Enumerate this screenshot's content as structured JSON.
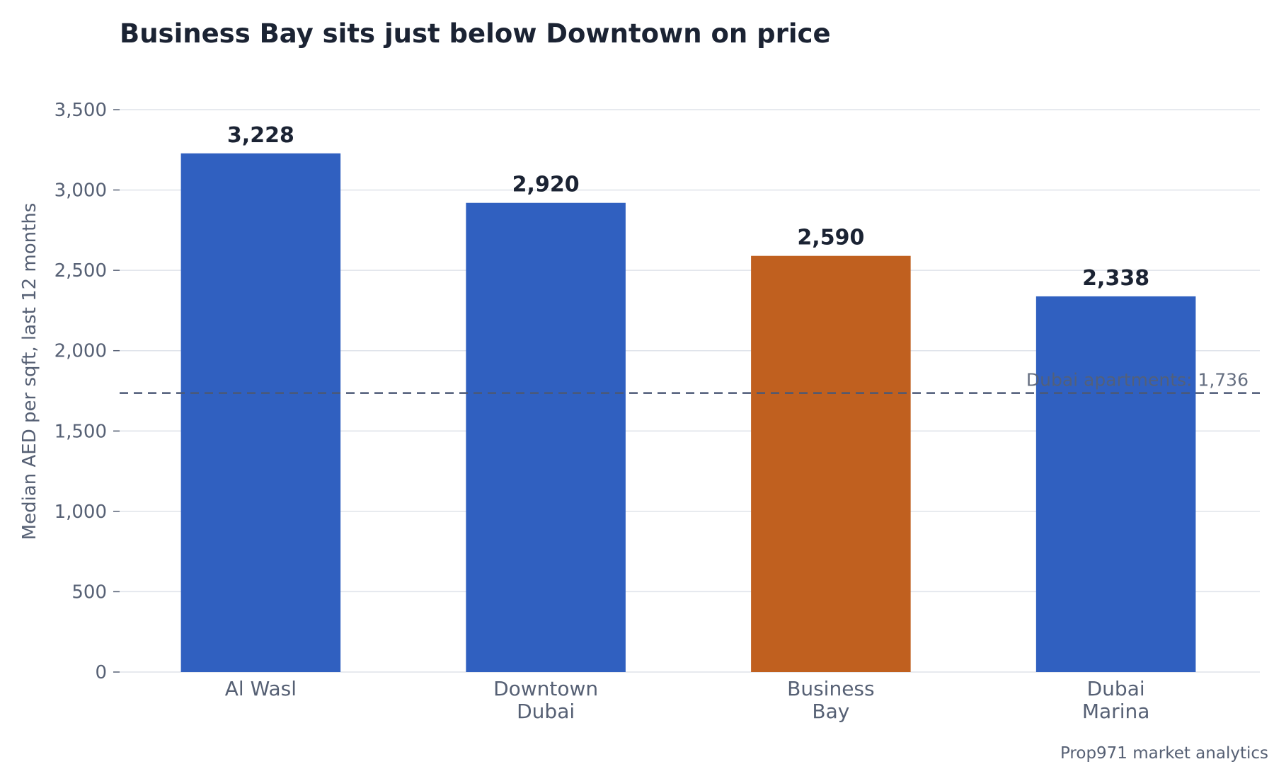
{
  "chart_data": {
    "type": "bar",
    "title": "Business Bay sits just below Downtown on price",
    "ylabel": "Median AED per sqft, last 12 months",
    "xlabel": "",
    "ylim": [
      0,
      3500
    ],
    "yticks": [
      0,
      500,
      1000,
      1500,
      2000,
      2500,
      3000,
      3500
    ],
    "ytick_labels": [
      "0",
      "500",
      "1,000",
      "1,500",
      "2,000",
      "2,500",
      "3,000",
      "3,500"
    ],
    "grid": true,
    "categories": [
      [
        "Al Wasl"
      ],
      [
        "Downtown",
        "Dubai"
      ],
      [
        "Business",
        "Bay"
      ],
      [
        "Dubai",
        "Marina"
      ]
    ],
    "values": [
      3228,
      2920,
      2590,
      2338
    ],
    "value_labels": [
      "3,228",
      "2,920",
      "2,590",
      "2,338"
    ],
    "colors": [
      "#3060c0",
      "#3060c0",
      "#c0601f",
      "#3060c0"
    ],
    "highlight_index": 2,
    "reference_line": {
      "value": 1736,
      "label": "Dubai apartments: 1,736",
      "color": "#4b5875"
    },
    "source": "Prop971 market analytics"
  }
}
